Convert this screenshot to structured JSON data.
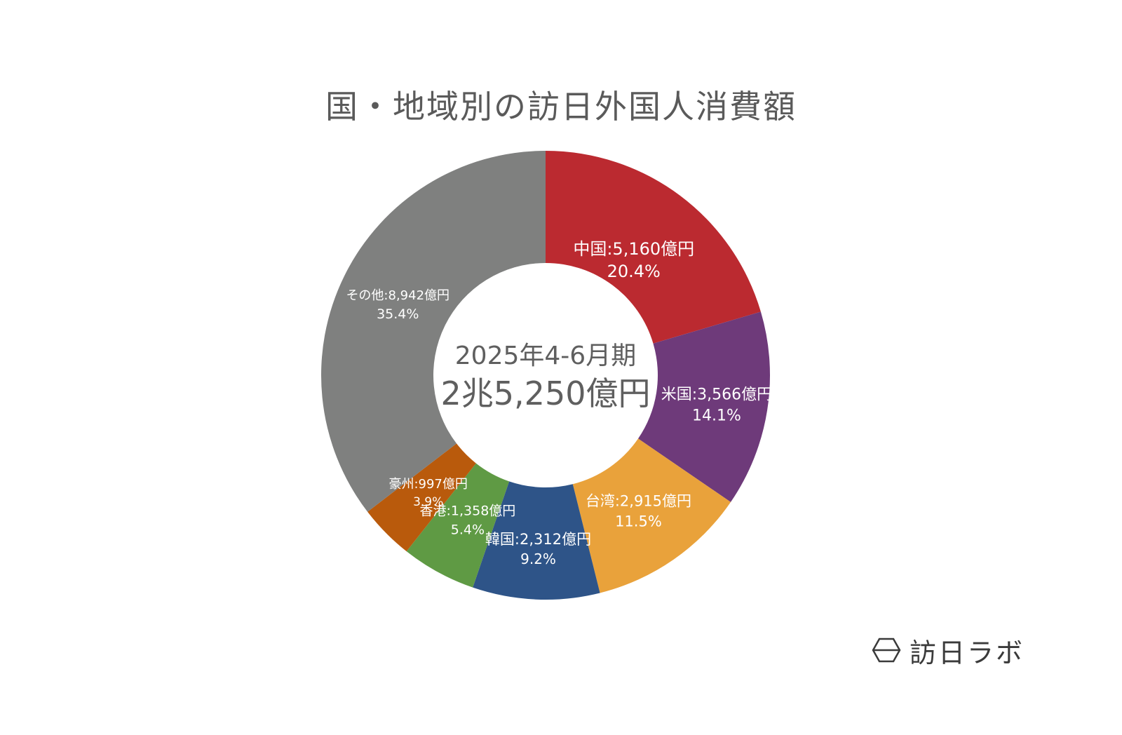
{
  "title": "国・地域別の訪日外国人消費額",
  "brand": {
    "name": "訪日ラボ",
    "icon": "hexagon-logo-icon"
  },
  "chart_data": {
    "type": "pie",
    "variant": "donut",
    "title": "国・地域別の訪日外国人消費額",
    "center": {
      "period": "2025年4-6月期",
      "total": "2兆5,250億円"
    },
    "slices": [
      {
        "name": "中国",
        "value": 5160,
        "value_label": "中国:5,160億円",
        "percent": 20.4,
        "percent_label": "20.4%",
        "color": "#bb2a30"
      },
      {
        "name": "米国",
        "value": 3566,
        "value_label": "米国:3,566億円",
        "percent": 14.1,
        "percent_label": "14.1%",
        "color": "#6e3a7a"
      },
      {
        "name": "台湾",
        "value": 2915,
        "value_label": "台湾:2,915億円",
        "percent": 11.5,
        "percent_label": "11.5%",
        "color": "#e9a23b"
      },
      {
        "name": "韓国",
        "value": 2312,
        "value_label": "韓国:2,312億円",
        "percent": 9.2,
        "percent_label": "9.2%",
        "color": "#2e5488"
      },
      {
        "name": "香港",
        "value": 1358,
        "value_label": "香港:1,358億円",
        "percent": 5.4,
        "percent_label": "5.4%",
        "color": "#5f9a44"
      },
      {
        "name": "豪州",
        "value": 997,
        "value_label": "豪州:997億円",
        "percent": 3.9,
        "percent_label": "3.9%",
        "color": "#b95a0c"
      },
      {
        "name": "その他",
        "value": 8942,
        "value_label": "その他:8,942億円",
        "percent": 35.4,
        "percent_label": "35.4%",
        "color": "#7f807f"
      }
    ]
  }
}
